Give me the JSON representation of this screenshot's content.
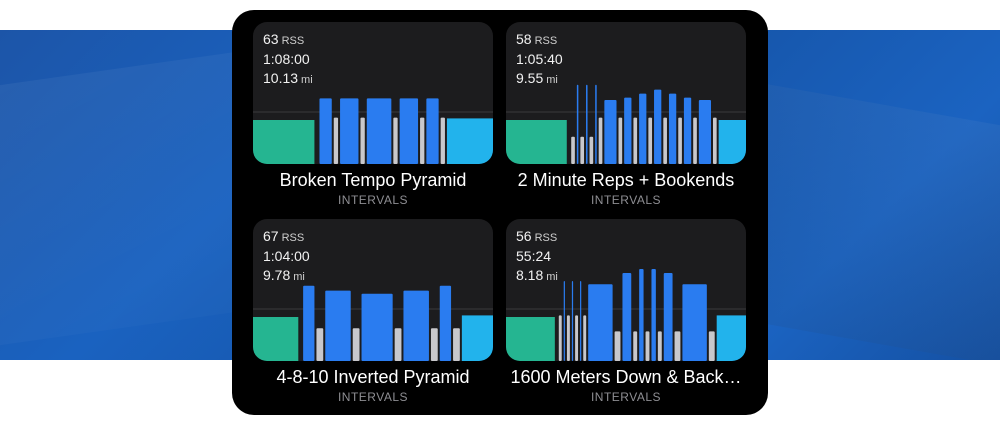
{
  "colors": {
    "warmup": "#25b591",
    "work": "#2a7cf0",
    "recovery": "#c8c8cc",
    "cooldown": "#22b3ec",
    "threshold_line": "#3a3a3c"
  },
  "workouts": [
    {
      "rss_value": "63",
      "rss_unit": "RSS",
      "duration": "1:08:00",
      "distance_value": "10.13",
      "distance_unit": "mi",
      "title": "Broken Tempo Pyramid",
      "category": "INTERVALS",
      "segments": [
        {
          "type": "warmup",
          "duration": 10,
          "intensity": 0.55
        },
        {
          "type": "gap",
          "duration": 0.5
        },
        {
          "type": "work",
          "duration": 2,
          "intensity": 0.82
        },
        {
          "type": "recovery",
          "duration": 0.7,
          "intensity": 0.58
        },
        {
          "type": "work",
          "duration": 3,
          "intensity": 0.82
        },
        {
          "type": "recovery",
          "duration": 0.7,
          "intensity": 0.58
        },
        {
          "type": "work",
          "duration": 4,
          "intensity": 0.82
        },
        {
          "type": "recovery",
          "duration": 0.7,
          "intensity": 0.58
        },
        {
          "type": "work",
          "duration": 3,
          "intensity": 0.82
        },
        {
          "type": "recovery",
          "duration": 0.7,
          "intensity": 0.58
        },
        {
          "type": "work",
          "duration": 2,
          "intensity": 0.82
        },
        {
          "type": "recovery",
          "duration": 0.7,
          "intensity": 0.58
        },
        {
          "type": "cooldown",
          "duration": 7.5,
          "intensity": 0.57
        }
      ]
    },
    {
      "rss_value": "58",
      "rss_unit": "RSS",
      "duration": "1:05:40",
      "distance_value": "9.55",
      "distance_unit": "mi",
      "title": "2 Minute Reps + Bookends",
      "category": "INTERVALS",
      "segments": [
        {
          "type": "warmup",
          "duration": 10,
          "intensity": 0.55
        },
        {
          "type": "gap",
          "duration": 0.4
        },
        {
          "type": "recovery",
          "duration": 0.6,
          "intensity": 0.34
        },
        {
          "type": "work",
          "duration": 0.25,
          "intensity": 0.99
        },
        {
          "type": "recovery",
          "duration": 0.6,
          "intensity": 0.34
        },
        {
          "type": "work",
          "duration": 0.25,
          "intensity": 0.99
        },
        {
          "type": "recovery",
          "duration": 0.6,
          "intensity": 0.34
        },
        {
          "type": "work",
          "duration": 0.25,
          "intensity": 0.99
        },
        {
          "type": "recovery",
          "duration": 0.6,
          "intensity": 0.58
        },
        {
          "type": "work",
          "duration": 2,
          "intensity": 0.8
        },
        {
          "type": "recovery",
          "duration": 0.6,
          "intensity": 0.58
        },
        {
          "type": "work",
          "duration": 1.2,
          "intensity": 0.83
        },
        {
          "type": "recovery",
          "duration": 0.6,
          "intensity": 0.58
        },
        {
          "type": "work",
          "duration": 1.2,
          "intensity": 0.88
        },
        {
          "type": "recovery",
          "duration": 0.6,
          "intensity": 0.58
        },
        {
          "type": "work",
          "duration": 1.2,
          "intensity": 0.93
        },
        {
          "type": "recovery",
          "duration": 0.6,
          "intensity": 0.58
        },
        {
          "type": "work",
          "duration": 1.2,
          "intensity": 0.88
        },
        {
          "type": "recovery",
          "duration": 0.6,
          "intensity": 0.58
        },
        {
          "type": "work",
          "duration": 1.2,
          "intensity": 0.83
        },
        {
          "type": "recovery",
          "duration": 0.6,
          "intensity": 0.58
        },
        {
          "type": "work",
          "duration": 2,
          "intensity": 0.8
        },
        {
          "type": "recovery",
          "duration": 0.6,
          "intensity": 0.58
        },
        {
          "type": "cooldown",
          "duration": 4.5,
          "intensity": 0.55
        }
      ]
    },
    {
      "rss_value": "67",
      "rss_unit": "RSS",
      "duration": "1:04:00",
      "distance_value": "9.78",
      "distance_unit": "mi",
      "title": "4-8-10 Inverted Pyramid",
      "category": "INTERVALS",
      "segments": [
        {
          "type": "warmup",
          "duration": 8,
          "intensity": 0.55
        },
        {
          "type": "gap",
          "duration": 0.5
        },
        {
          "type": "work",
          "duration": 2,
          "intensity": 0.94
        },
        {
          "type": "recovery",
          "duration": 1.2,
          "intensity": 0.41
        },
        {
          "type": "work",
          "duration": 4.5,
          "intensity": 0.88
        },
        {
          "type": "recovery",
          "duration": 1.2,
          "intensity": 0.41
        },
        {
          "type": "work",
          "duration": 5.5,
          "intensity": 0.84
        },
        {
          "type": "recovery",
          "duration": 1.2,
          "intensity": 0.41
        },
        {
          "type": "work",
          "duration": 4.5,
          "intensity": 0.88
        },
        {
          "type": "recovery",
          "duration": 1.2,
          "intensity": 0.41
        },
        {
          "type": "work",
          "duration": 2,
          "intensity": 0.94
        },
        {
          "type": "recovery",
          "duration": 1.2,
          "intensity": 0.41
        },
        {
          "type": "cooldown",
          "duration": 5.5,
          "intensity": 0.57
        }
      ]
    },
    {
      "rss_value": "56",
      "rss_unit": "RSS",
      "duration": "55:24",
      "distance_value": "8.18",
      "distance_unit": "mi",
      "title": "1600 Meters Down & Back…",
      "category": "INTERVALS",
      "segments": [
        {
          "type": "warmup",
          "duration": 10,
          "intensity": 0.55
        },
        {
          "type": "gap",
          "duration": 0.4
        },
        {
          "type": "recovery",
          "duration": 0.6,
          "intensity": 0.57
        },
        {
          "type": "work",
          "duration": 0.25,
          "intensity": 1.0
        },
        {
          "type": "recovery",
          "duration": 0.6,
          "intensity": 0.57
        },
        {
          "type": "work",
          "duration": 0.25,
          "intensity": 1.0
        },
        {
          "type": "recovery",
          "duration": 0.6,
          "intensity": 0.57
        },
        {
          "type": "work",
          "duration": 0.25,
          "intensity": 1.0
        },
        {
          "type": "recovery",
          "duration": 0.6,
          "intensity": 0.57
        },
        {
          "type": "work",
          "duration": 5,
          "intensity": 0.96
        },
        {
          "type": "recovery",
          "duration": 1.2,
          "intensity": 0.37
        },
        {
          "type": "work",
          "duration": 1.8,
          "intensity": 1.1
        },
        {
          "type": "recovery",
          "duration": 0.8,
          "intensity": 0.37
        },
        {
          "type": "work",
          "duration": 0.9,
          "intensity": 1.15
        },
        {
          "type": "recovery",
          "duration": 0.8,
          "intensity": 0.37
        },
        {
          "type": "work",
          "duration": 0.9,
          "intensity": 1.15
        },
        {
          "type": "recovery",
          "duration": 0.8,
          "intensity": 0.37
        },
        {
          "type": "work",
          "duration": 1.8,
          "intensity": 1.1
        },
        {
          "type": "recovery",
          "duration": 1.2,
          "intensity": 0.37
        },
        {
          "type": "work",
          "duration": 5,
          "intensity": 0.96
        },
        {
          "type": "recovery",
          "duration": 1.2,
          "intensity": 0.37
        },
        {
          "type": "cooldown",
          "duration": 6,
          "intensity": 0.57
        }
      ]
    }
  ]
}
